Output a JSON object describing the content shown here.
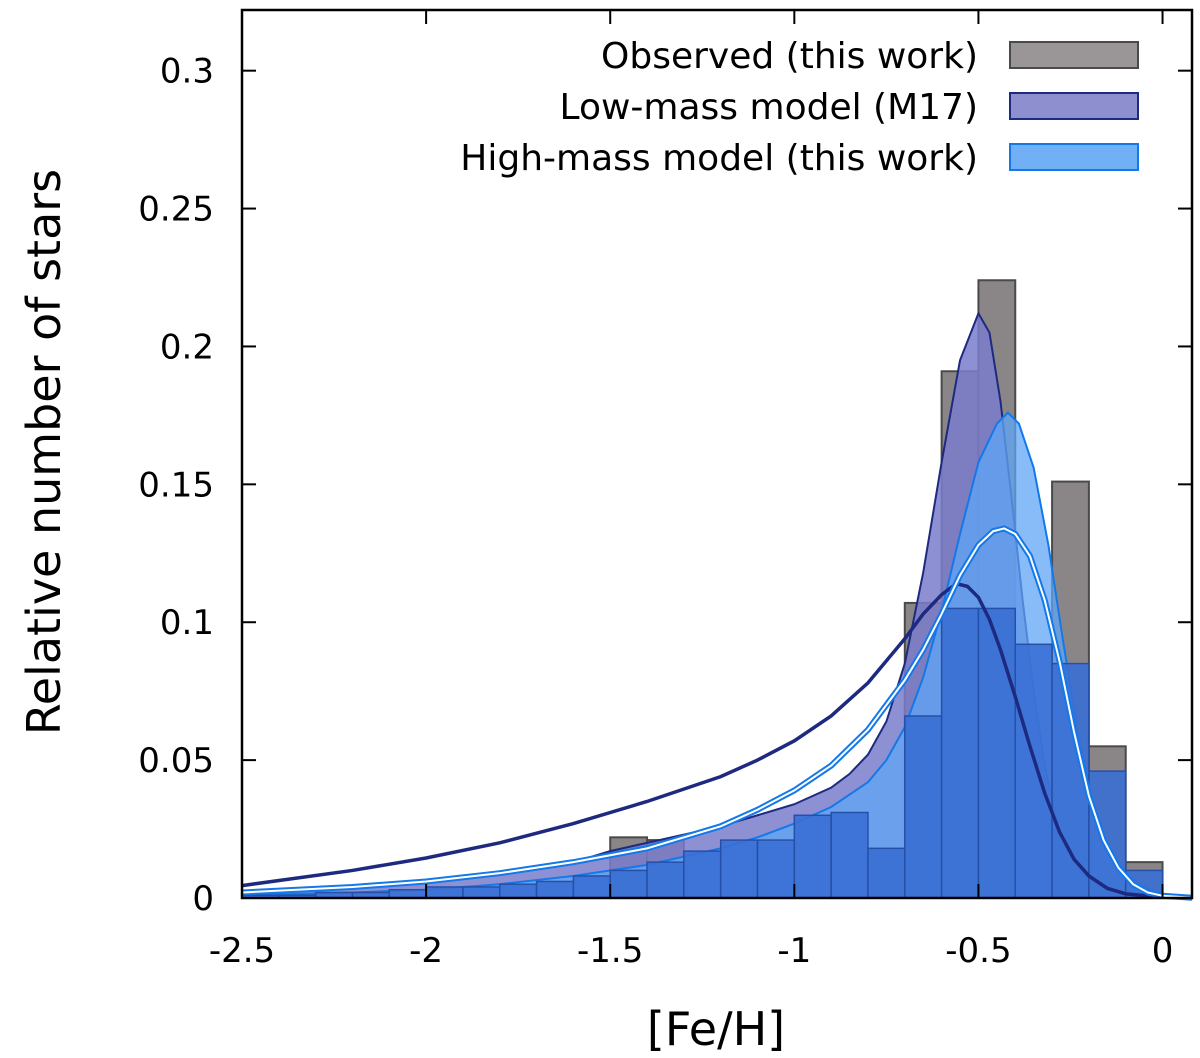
{
  "chart_data": {
    "type": "histogram",
    "xlabel": "[Fe/H]",
    "ylabel": "Relative number of stars",
    "xlim": [
      -2.5,
      0.08
    ],
    "ylim": [
      0,
      0.322
    ],
    "xticks": [
      -2.5,
      -2,
      -1.5,
      -1,
      -0.5,
      0
    ],
    "xtick_labels": [
      "-2.5",
      "-2",
      "-1.5",
      "-1",
      "-0.5",
      "0"
    ],
    "yticks": [
      0,
      0.05,
      0.1,
      0.15,
      0.2,
      0.25,
      0.3
    ],
    "ytick_labels": [
      "0",
      "0.05",
      "0.1",
      "0.15",
      "0.2",
      "0.25",
      "0.3"
    ],
    "legend_position": "top-right",
    "legend": [
      {
        "label": "Observed (this work)",
        "fill": "#9a9698",
        "stroke": "#4a4a4a"
      },
      {
        "label": "Low-mass model (M17)",
        "fill": "#8e8fcf",
        "stroke": "#1e2a80"
      },
      {
        "label": "High-mass model (this work)",
        "fill": "#72b0f5",
        "stroke": "#1478e8"
      }
    ],
    "colors": {
      "observed_fill": "#8a8688",
      "observed_stroke": "#4a4a4a",
      "low_fill": "#7a7ccc",
      "low_stroke": "#1e2a80",
      "high_fill": "#5fa6f5",
      "high_stroke": "#1478e8",
      "overlap_bar_fill": "#3a6fd4",
      "overlap_bar_stroke": "#2550a8"
    },
    "histogram": {
      "bin_width": 0.1,
      "observed": [
        {
          "x0": -1.5,
          "value": 0.022
        },
        {
          "x0": -1.4,
          "value": 0.021
        },
        {
          "x0": -0.8,
          "value": 0.018
        },
        {
          "x0": -0.7,
          "value": 0.066
        },
        {
          "x0": -0.7,
          "value": 0.107
        },
        {
          "x0": -0.6,
          "value": 0.191
        },
        {
          "x0": -0.5,
          "value": 0.224
        },
        {
          "x0": -0.3,
          "value": 0.151
        },
        {
          "x0": -0.2,
          "value": 0.055
        },
        {
          "x0": -0.1,
          "value": 0.013
        }
      ],
      "high_mass_bars": [
        {
          "x0": -2.5,
          "value": 0.001
        },
        {
          "x0": -2.4,
          "value": 0.001
        },
        {
          "x0": -2.3,
          "value": 0.002
        },
        {
          "x0": -2.2,
          "value": 0.002
        },
        {
          "x0": -2.1,
          "value": 0.003
        },
        {
          "x0": -2.0,
          "value": 0.004
        },
        {
          "x0": -1.9,
          "value": 0.004
        },
        {
          "x0": -1.8,
          "value": 0.005
        },
        {
          "x0": -1.7,
          "value": 0.006
        },
        {
          "x0": -1.6,
          "value": 0.008
        },
        {
          "x0": -1.5,
          "value": 0.01
        },
        {
          "x0": -1.4,
          "value": 0.013
        },
        {
          "x0": -1.3,
          "value": 0.017
        },
        {
          "x0": -1.2,
          "value": 0.021
        },
        {
          "x0": -1.1,
          "value": 0.021
        },
        {
          "x0": -1.0,
          "value": 0.03
        },
        {
          "x0": -0.9,
          "value": 0.031
        },
        {
          "x0": -0.8,
          "value": 0.018
        },
        {
          "x0": -0.7,
          "value": 0.066
        },
        {
          "x0": -0.6,
          "value": 0.105
        },
        {
          "x0": -0.5,
          "value": 0.105
        },
        {
          "x0": -0.4,
          "value": 0.092
        },
        {
          "x0": -0.3,
          "value": 0.085
        },
        {
          "x0": -0.2,
          "value": 0.046
        },
        {
          "x0": -0.1,
          "value": 0.01
        }
      ]
    },
    "model_curves": {
      "low_mass_filled": [
        [
          -2.5,
          0.002
        ],
        [
          -2.2,
          0.004
        ],
        [
          -2.0,
          0.006
        ],
        [
          -1.8,
          0.009
        ],
        [
          -1.6,
          0.013
        ],
        [
          -1.5,
          0.017
        ],
        [
          -1.4,
          0.02
        ],
        [
          -1.3,
          0.023
        ],
        [
          -1.2,
          0.026
        ],
        [
          -1.1,
          0.03
        ],
        [
          -1.0,
          0.034
        ],
        [
          -0.9,
          0.04
        ],
        [
          -0.85,
          0.045
        ],
        [
          -0.8,
          0.052
        ],
        [
          -0.75,
          0.064
        ],
        [
          -0.7,
          0.085
        ],
        [
          -0.65,
          0.118
        ],
        [
          -0.6,
          0.158
        ],
        [
          -0.55,
          0.195
        ],
        [
          -0.5,
          0.212
        ],
        [
          -0.47,
          0.205
        ],
        [
          -0.44,
          0.18
        ],
        [
          -0.41,
          0.145
        ],
        [
          -0.38,
          0.108
        ],
        [
          -0.35,
          0.075
        ],
        [
          -0.32,
          0.048
        ],
        [
          -0.29,
          0.029
        ],
        [
          -0.26,
          0.017
        ],
        [
          -0.22,
          0.009
        ],
        [
          -0.17,
          0.004
        ],
        [
          -0.1,
          0.0015
        ],
        [
          0.0,
          0.0004
        ],
        [
          0.08,
          0.0
        ]
      ],
      "high_mass_filled": [
        [
          -2.5,
          0.001
        ],
        [
          -2.2,
          0.002
        ],
        [
          -2.0,
          0.003
        ],
        [
          -1.8,
          0.005
        ],
        [
          -1.6,
          0.008
        ],
        [
          -1.4,
          0.012
        ],
        [
          -1.2,
          0.018
        ],
        [
          -1.1,
          0.022
        ],
        [
          -1.0,
          0.027
        ],
        [
          -0.9,
          0.033
        ],
        [
          -0.8,
          0.042
        ],
        [
          -0.75,
          0.05
        ],
        [
          -0.7,
          0.062
        ],
        [
          -0.65,
          0.08
        ],
        [
          -0.6,
          0.104
        ],
        [
          -0.55,
          0.132
        ],
        [
          -0.5,
          0.158
        ],
        [
          -0.45,
          0.172
        ],
        [
          -0.42,
          0.176
        ],
        [
          -0.39,
          0.172
        ],
        [
          -0.35,
          0.156
        ],
        [
          -0.31,
          0.128
        ],
        [
          -0.27,
          0.093
        ],
        [
          -0.23,
          0.06
        ],
        [
          -0.19,
          0.035
        ],
        [
          -0.15,
          0.019
        ],
        [
          -0.1,
          0.009
        ],
        [
          -0.05,
          0.004
        ],
        [
          0.0,
          0.0015
        ],
        [
          0.08,
          0.0002
        ]
      ],
      "low_mass_line": [
        [
          -2.5,
          0.0045
        ],
        [
          -2.2,
          0.01
        ],
        [
          -2.0,
          0.0145
        ],
        [
          -1.8,
          0.02
        ],
        [
          -1.6,
          0.027
        ],
        [
          -1.4,
          0.035
        ],
        [
          -1.2,
          0.044
        ],
        [
          -1.1,
          0.05
        ],
        [
          -1.0,
          0.057
        ],
        [
          -0.9,
          0.066
        ],
        [
          -0.8,
          0.078
        ],
        [
          -0.7,
          0.094
        ],
        [
          -0.65,
          0.103
        ],
        [
          -0.6,
          0.11
        ],
        [
          -0.56,
          0.114
        ],
        [
          -0.53,
          0.113
        ],
        [
          -0.5,
          0.109
        ],
        [
          -0.47,
          0.101
        ],
        [
          -0.44,
          0.09
        ],
        [
          -0.4,
          0.073
        ],
        [
          -0.36,
          0.055
        ],
        [
          -0.32,
          0.038
        ],
        [
          -0.28,
          0.024
        ],
        [
          -0.24,
          0.014
        ],
        [
          -0.2,
          0.008
        ],
        [
          -0.15,
          0.0035
        ],
        [
          -0.1,
          0.0015
        ],
        [
          0.0,
          0.0003
        ],
        [
          0.08,
          0.0
        ]
      ],
      "high_mass_line": [
        [
          -2.5,
          0.002
        ],
        [
          -2.2,
          0.004
        ],
        [
          -2.0,
          0.006
        ],
        [
          -1.8,
          0.009
        ],
        [
          -1.6,
          0.013
        ],
        [
          -1.4,
          0.018
        ],
        [
          -1.2,
          0.026
        ],
        [
          -1.1,
          0.032
        ],
        [
          -1.0,
          0.039
        ],
        [
          -0.9,
          0.048
        ],
        [
          -0.8,
          0.061
        ],
        [
          -0.7,
          0.079
        ],
        [
          -0.65,
          0.09
        ],
        [
          -0.6,
          0.103
        ],
        [
          -0.55,
          0.117
        ],
        [
          -0.5,
          0.128
        ],
        [
          -0.46,
          0.133
        ],
        [
          -0.43,
          0.134
        ],
        [
          -0.4,
          0.132
        ],
        [
          -0.36,
          0.124
        ],
        [
          -0.32,
          0.108
        ],
        [
          -0.28,
          0.086
        ],
        [
          -0.24,
          0.06
        ],
        [
          -0.2,
          0.037
        ],
        [
          -0.16,
          0.021
        ],
        [
          -0.12,
          0.011
        ],
        [
          -0.08,
          0.005
        ],
        [
          -0.04,
          0.002
        ],
        [
          0.0,
          0.0008
        ],
        [
          0.08,
          0.0001
        ]
      ]
    }
  }
}
